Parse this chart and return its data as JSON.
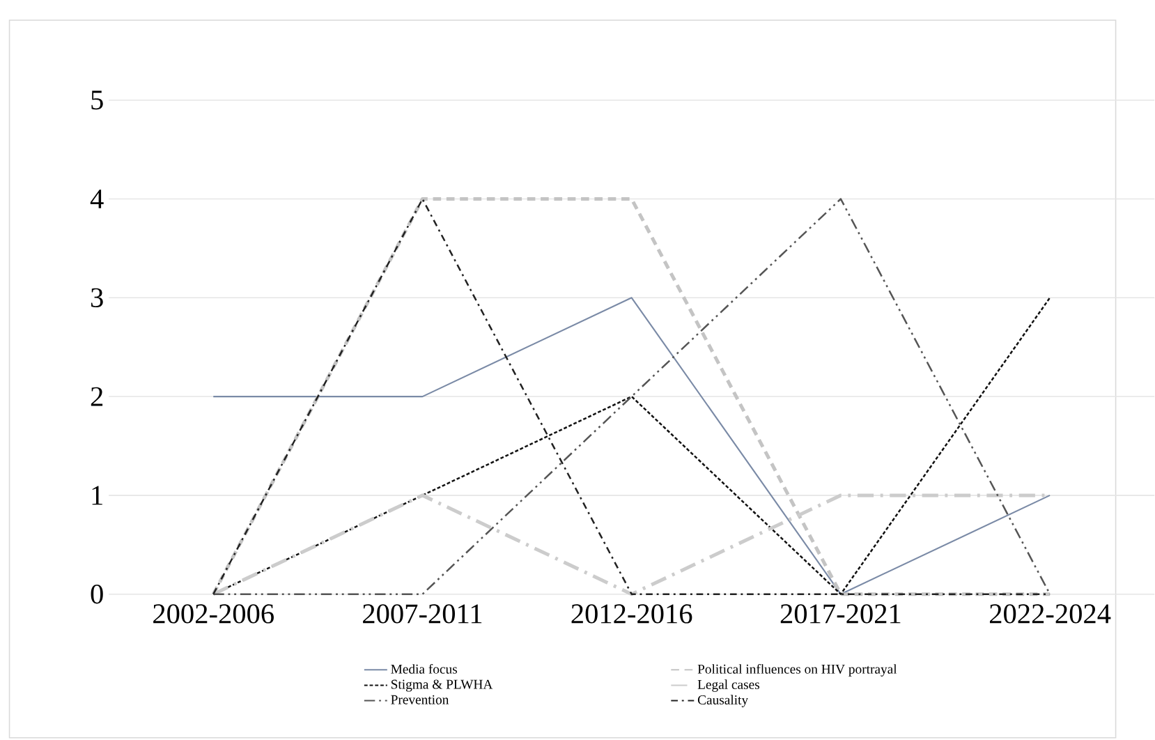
{
  "chart_data": {
    "type": "line",
    "categories": [
      "2002-2006",
      "2007-2011",
      "2012-2016",
      "2017-2021",
      "2022-2024"
    ],
    "series": [
      {
        "name": "Media focus",
        "color": "#7a8aa6",
        "line_style": "solid",
        "values": [
          2,
          2,
          3,
          0,
          1
        ]
      },
      {
        "name": "Political influences on HIV portrayal",
        "color": "#c4c4c4",
        "line_style": "dashed",
        "values": [
          0,
          4,
          4,
          0,
          0
        ]
      },
      {
        "name": "Stigma & PLWHA",
        "color": "#111111",
        "line_style": "dotted",
        "values": [
          0,
          1,
          2,
          0,
          3
        ]
      },
      {
        "name": "Legal cases",
        "color": "#cccccc",
        "line_style": "longdashdot",
        "values": [
          0,
          1,
          0,
          1,
          1
        ]
      },
      {
        "name": "Prevention",
        "color": "#555555",
        "line_style": "dashdotdot",
        "values": [
          0,
          0,
          2,
          4,
          0
        ]
      },
      {
        "name": "Causality",
        "color": "#222222",
        "line_style": "dashdot",
        "values": [
          0,
          4,
          0,
          0,
          0
        ]
      }
    ],
    "ylim": [
      0,
      5
    ],
    "yticks": [
      0,
      1,
      2,
      3,
      4,
      5
    ],
    "grid": "y",
    "legend": "bottom",
    "marker": "none"
  }
}
